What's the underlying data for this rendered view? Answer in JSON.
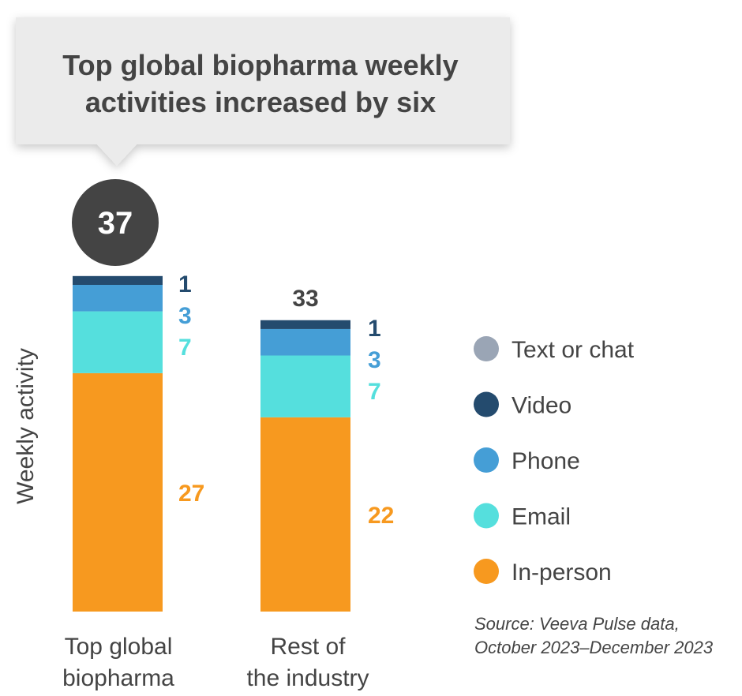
{
  "chart_data": {
    "type": "bar",
    "stacked": true,
    "title": "Top global biopharma weekly activities increased by six",
    "ylabel": "Weekly activity",
    "xlabel": "",
    "ylim": [
      0,
      37
    ],
    "grid": false,
    "legend_position": "right",
    "categories": [
      {
        "line1": "Top global",
        "line2": "biopharma"
      },
      {
        "line1": "Rest of",
        "line2": "the industry"
      }
    ],
    "totals": [
      "37",
      "33"
    ],
    "total_values": [
      37,
      33
    ],
    "series": [
      {
        "name": "In-person",
        "color": "#F7991F",
        "values": [
          27,
          22
        ],
        "labels": [
          "27",
          "22"
        ]
      },
      {
        "name": "Email",
        "color": "#55DFDD",
        "values": [
          7,
          7
        ],
        "labels": [
          "7",
          "7"
        ]
      },
      {
        "name": "Phone",
        "color": "#459ED6",
        "values": [
          3,
          3
        ],
        "labels": [
          "3",
          "3"
        ]
      },
      {
        "name": "Video",
        "color": "#244B6E",
        "values": [
          1,
          1
        ],
        "labels": [
          "1",
          "1"
        ]
      },
      {
        "name": "Text or chat",
        "color": "#9AA5B5",
        "values": [
          0,
          0
        ],
        "labels": [
          null,
          null
        ]
      }
    ],
    "legend": [
      "Text or chat",
      "Video",
      "Phone",
      "Email",
      "In-person"
    ],
    "source_line1": "Source: Veeva Pulse data,",
    "source_line2": "October 2023–December 2023"
  },
  "callout": {
    "line1": "Top global biopharma weekly",
    "line2": "activities increased by six"
  }
}
